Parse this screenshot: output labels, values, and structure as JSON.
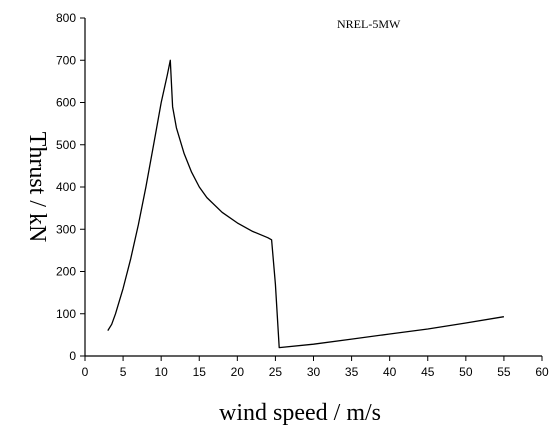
{
  "chart_data": {
    "type": "line",
    "title": "",
    "annotation": "NREL-5MW",
    "xlabel": "wind speed / m/s",
    "ylabel": "Thrust / kN",
    "xlim": [
      0,
      60
    ],
    "ylim": [
      0,
      800
    ],
    "xticks": [
      0,
      5,
      10,
      15,
      20,
      25,
      30,
      35,
      40,
      45,
      50,
      55,
      60
    ],
    "yticks": [
      0,
      100,
      200,
      300,
      400,
      500,
      600,
      700,
      800
    ],
    "grid": false,
    "legend": "none",
    "line_color": "#000000",
    "series": [
      {
        "x": [
          3,
          3.5,
          4,
          5,
          6,
          7,
          8,
          9,
          10,
          10.8,
          11.2,
          11.5,
          12,
          13,
          14,
          15,
          16,
          18,
          20,
          22,
          24,
          24.5,
          25,
          25.5,
          30,
          35,
          40,
          45,
          50,
          55
        ],
        "y": [
          60,
          75,
          100,
          160,
          230,
          310,
          400,
          500,
          600,
          665,
          700,
          590,
          540,
          480,
          435,
          400,
          375,
          340,
          315,
          295,
          280,
          275,
          170,
          20,
          28,
          40,
          52,
          64,
          78,
          93
        ]
      }
    ]
  }
}
